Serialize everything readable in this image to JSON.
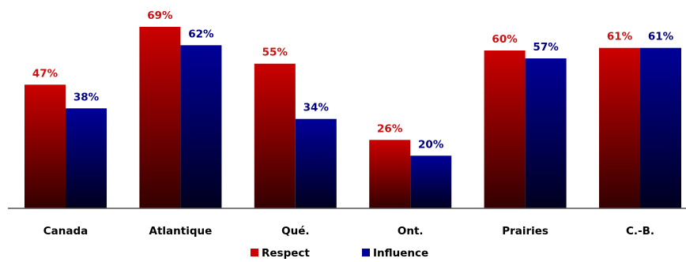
{
  "chart_data": {
    "type": "bar",
    "categories": [
      "Canada",
      "Atlantique",
      "Qué.",
      "Ont.",
      "Prairies",
      "C.-B."
    ],
    "series": [
      {
        "name": "Respect",
        "values": [
          47,
          69,
          55,
          26,
          60,
          61
        ],
        "labels": [
          "47%",
          "69%",
          "55%",
          "26%",
          "60%",
          "61%"
        ],
        "color": "#cc0000",
        "gradient_end": "#330000",
        "label_color": "#cc1111"
      },
      {
        "name": "Influence",
        "values": [
          38,
          62,
          34,
          20,
          57,
          61
        ],
        "labels": [
          "38%",
          "62%",
          "34%",
          "20%",
          "57%",
          "61%"
        ],
        "color": "#000099",
        "gradient_end": "#00001e",
        "label_color": "#000080"
      }
    ],
    "ylim": [
      0,
      69
    ],
    "grid": false,
    "legend": "bottom-center",
    "baseline_color": "#555555"
  }
}
